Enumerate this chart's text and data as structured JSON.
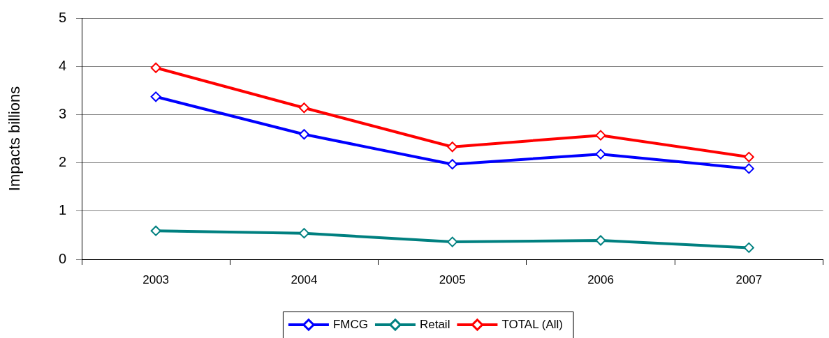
{
  "chart_data": {
    "type": "line",
    "ylabel": "Impacts billions",
    "categories": [
      "2003",
      "2004",
      "2005",
      "2006",
      "2007"
    ],
    "series": [
      {
        "name": "FMCG",
        "color": "#0000ff",
        "values": [
          3.37,
          2.59,
          1.97,
          2.18,
          1.88
        ]
      },
      {
        "name": "Retail",
        "color": "#008080",
        "values": [
          0.59,
          0.54,
          0.36,
          0.39,
          0.24
        ]
      },
      {
        "name": "TOTAL (All)",
        "color": "#ff0000",
        "values": [
          3.97,
          3.14,
          2.33,
          2.57,
          2.12
        ]
      }
    ],
    "ylim": [
      0,
      5
    ],
    "yticks": [
      0,
      1,
      2,
      3,
      4,
      5
    ],
    "grid": "y",
    "legend": "bottom",
    "marker": "diamond",
    "line_style": "solid"
  }
}
